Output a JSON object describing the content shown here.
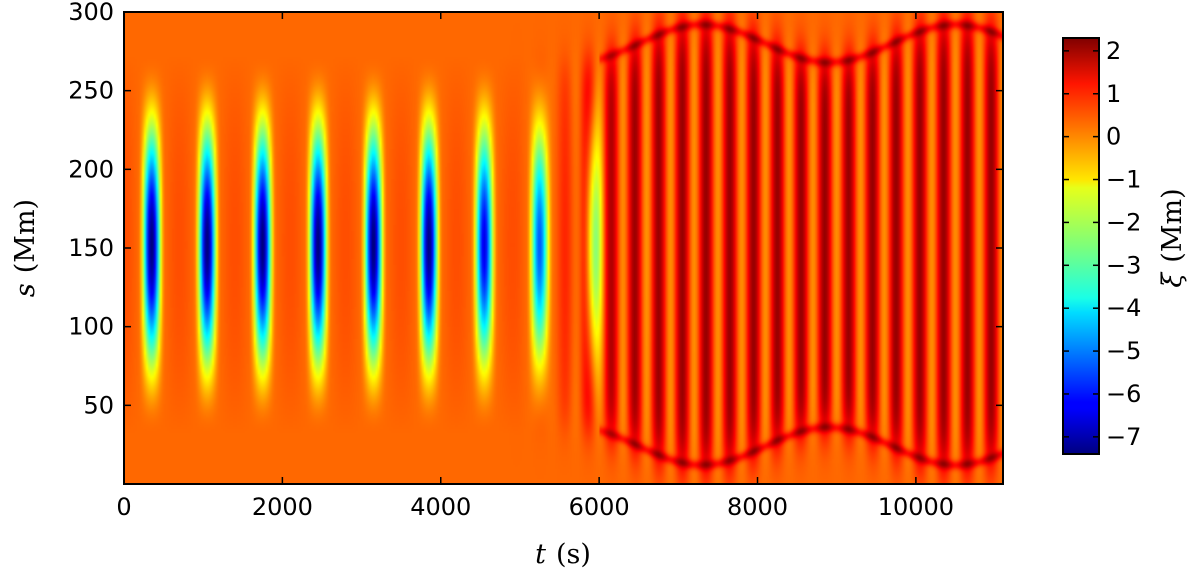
{
  "chart_data": {
    "type": "heatmap",
    "title": "",
    "x_axis": {
      "variable": "t",
      "unit": "(s)",
      "range": [
        0,
        11100
      ],
      "ticks": [
        0,
        2000,
        4000,
        6000,
        8000,
        10000
      ],
      "tick_labels": [
        "0",
        "2000",
        "4000",
        "6000",
        "8000",
        "10000"
      ]
    },
    "y_axis": {
      "variable": "s",
      "unit": "(Mm)",
      "range": [
        0,
        300
      ],
      "ticks": [
        50,
        100,
        150,
        200,
        250,
        300
      ],
      "tick_labels": [
        "50",
        "100",
        "150",
        "200",
        "250",
        "300"
      ]
    },
    "colorbar": {
      "variable": "ξ",
      "unit": "(Mm)",
      "colormap": "jet",
      "range": [
        -7.4,
        2.3
      ],
      "ticks": [
        2,
        1,
        0,
        -1,
        -2,
        -3,
        -4,
        -5,
        -6,
        -7
      ],
      "tick_labels": [
        "2",
        "1",
        "0",
        "−1",
        "−2",
        "−3",
        "−4",
        "−5",
        "−6",
        "−7"
      ]
    },
    "field": {
      "slow_oscillation": {
        "t_end": 6000,
        "period": 700,
        "min_value": -7.3,
        "center_s": 152
      },
      "fast_oscillation": {
        "t_start": 5800,
        "period": 300,
        "max_value": 2.2
      },
      "background_value": 0.1
    }
  }
}
